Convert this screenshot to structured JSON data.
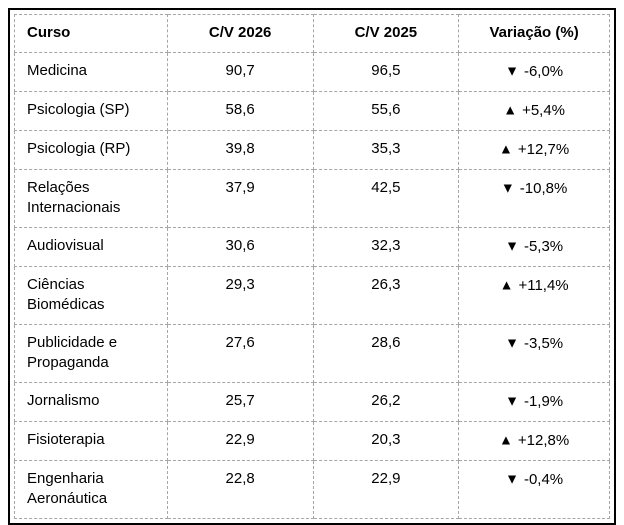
{
  "table": {
    "columns": [
      {
        "key": "curso",
        "label": "Curso"
      },
      {
        "key": "cv2026",
        "label": "C/V 2026"
      },
      {
        "key": "cv2025",
        "label": "C/V 2025"
      },
      {
        "key": "variacao",
        "label": "Variação (%)"
      }
    ],
    "rows": [
      {
        "curso": "Medicina",
        "cv2026": "90,7",
        "cv2025": "96,5",
        "variacao": {
          "direction": "down",
          "value": "-6,0%"
        }
      },
      {
        "curso": "Psicologia (SP)",
        "cv2026": "58,6",
        "cv2025": "55,6",
        "variacao": {
          "direction": "up",
          "value": "+5,4%"
        }
      },
      {
        "curso": "Psicologia (RP)",
        "cv2026": "39,8",
        "cv2025": "35,3",
        "variacao": {
          "direction": "up",
          "value": "+12,7%"
        }
      },
      {
        "curso": "Relações Internacionais",
        "cv2026": "37,9",
        "cv2025": "42,5",
        "variacao": {
          "direction": "down",
          "value": "-10,8%"
        }
      },
      {
        "curso": "Audiovisual",
        "cv2026": "30,6",
        "cv2025": "32,3",
        "variacao": {
          "direction": "down",
          "value": "-5,3%"
        }
      },
      {
        "curso": "Ciências Biomédicas",
        "cv2026": "29,3",
        "cv2025": "26,3",
        "variacao": {
          "direction": "up",
          "value": "+11,4%"
        }
      },
      {
        "curso": "Publicidade e Propaganda",
        "cv2026": "27,6",
        "cv2025": "28,6",
        "variacao": {
          "direction": "down",
          "value": "-3,5%"
        }
      },
      {
        "curso": "Jornalismo",
        "cv2026": "25,7",
        "cv2025": "26,2",
        "variacao": {
          "direction": "down",
          "value": "-1,9%"
        }
      },
      {
        "curso": "Fisioterapia",
        "cv2026": "22,9",
        "cv2025": "20,3",
        "variacao": {
          "direction": "up",
          "value": "+12,8%"
        }
      },
      {
        "curso": "Engenharia Aeronáutica",
        "cv2026": "22,8",
        "cv2025": "22,9",
        "variacao": {
          "direction": "down",
          "value": "-0,4%"
        }
      }
    ]
  },
  "icons": {
    "down": "▼",
    "up": "▲"
  },
  "colors": {
    "outer_border": "#000000",
    "gridline": "#a6a6a6",
    "text": "#000000",
    "background": "#ffffff"
  }
}
